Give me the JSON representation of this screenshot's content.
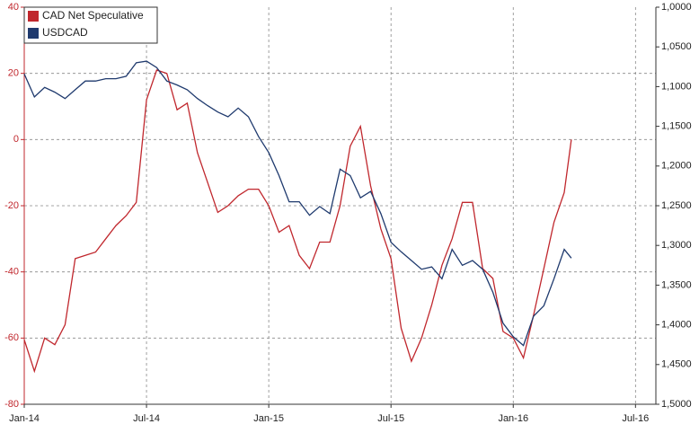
{
  "chart_data": {
    "type": "line",
    "x": [
      0,
      0.5,
      1,
      1.5,
      2,
      2.5,
      3,
      3.5,
      4,
      4.5,
      5,
      5.5,
      6,
      6.5,
      7,
      7.5,
      8,
      8.5,
      9,
      9.5,
      10,
      10.5,
      11,
      11.5,
      12,
      12.5,
      13,
      13.5,
      14,
      14.5,
      15,
      15.5,
      16,
      16.5,
      17,
      17.5,
      18,
      18.5,
      19,
      19.5,
      20,
      20.5,
      21,
      21.5,
      22,
      22.5,
      23,
      23.5,
      24,
      24.5,
      25,
      25.5,
      26,
      26.5,
      26.85
    ],
    "xlim": [
      0,
      31
    ],
    "xticks": [
      {
        "value": 0,
        "label": "Jan-14"
      },
      {
        "value": 6,
        "label": "Jul-14"
      },
      {
        "value": 12,
        "label": "Jan-15"
      },
      {
        "value": 18,
        "label": "Jul-15"
      },
      {
        "value": 24,
        "label": "Jan-16"
      },
      {
        "value": 30,
        "label": "Jul-16"
      }
    ],
    "ylim": [
      -80,
      40
    ],
    "yticks": [
      -80,
      -60,
      -40,
      -20,
      0,
      20,
      40
    ],
    "y2lim": [
      1.0,
      1.5
    ],
    "y2_inverted": true,
    "y2ticks": [
      {
        "value": 1.0,
        "label": "1,0000"
      },
      {
        "value": 1.05,
        "label": "1,0500"
      },
      {
        "value": 1.1,
        "label": "1,1000"
      },
      {
        "value": 1.15,
        "label": "1,1500"
      },
      {
        "value": 1.2,
        "label": "1,2000"
      },
      {
        "value": 1.25,
        "label": "1,2500"
      },
      {
        "value": 1.3,
        "label": "1,3000"
      },
      {
        "value": 1.35,
        "label": "1,3500"
      },
      {
        "value": 1.4,
        "label": "1,4000"
      },
      {
        "value": 1.45,
        "label": "1,4500"
      },
      {
        "value": 1.5,
        "label": "1,5000"
      }
    ],
    "grid": true,
    "legend": "upper left",
    "series": [
      {
        "name": "CAD Net Speculative",
        "color": "#c0272d",
        "axis": "y",
        "values": [
          -60.5,
          -70,
          -60,
          -62,
          -56,
          -36,
          -35,
          -34,
          -30,
          -26,
          -23,
          -19,
          12,
          21,
          20,
          9,
          11,
          -4,
          -13,
          -22,
          -20,
          -17,
          -15,
          -15,
          -20,
          -28,
          -26,
          -35,
          -39,
          -31,
          -31,
          -20,
          -2,
          4,
          -14,
          -27,
          -36,
          -57,
          -67,
          -60,
          -50,
          -38,
          -30,
          -19,
          -19,
          -39,
          -42,
          -58,
          -60,
          -66,
          -53,
          -39,
          -25,
          -16,
          0
        ]
      },
      {
        "name": "USDCAD",
        "color": "#1f3a6e",
        "axis": "y2",
        "values": [
          1.084,
          1.113,
          1.101,
          1.107,
          1.115,
          1.104,
          1.093,
          1.093,
          1.09,
          1.09,
          1.087,
          1.07,
          1.068,
          1.076,
          1.093,
          1.098,
          1.104,
          1.115,
          1.124,
          1.132,
          1.138,
          1.127,
          1.138,
          1.163,
          1.183,
          1.212,
          1.245,
          1.245,
          1.262,
          1.251,
          1.26,
          1.204,
          1.212,
          1.24,
          1.232,
          1.26,
          1.296,
          1.308,
          1.319,
          1.33,
          1.327,
          1.342,
          1.305,
          1.325,
          1.319,
          1.33,
          1.359,
          1.398,
          1.415,
          1.426,
          1.389,
          1.376,
          1.342,
          1.305,
          1.316
        ]
      }
    ]
  }
}
